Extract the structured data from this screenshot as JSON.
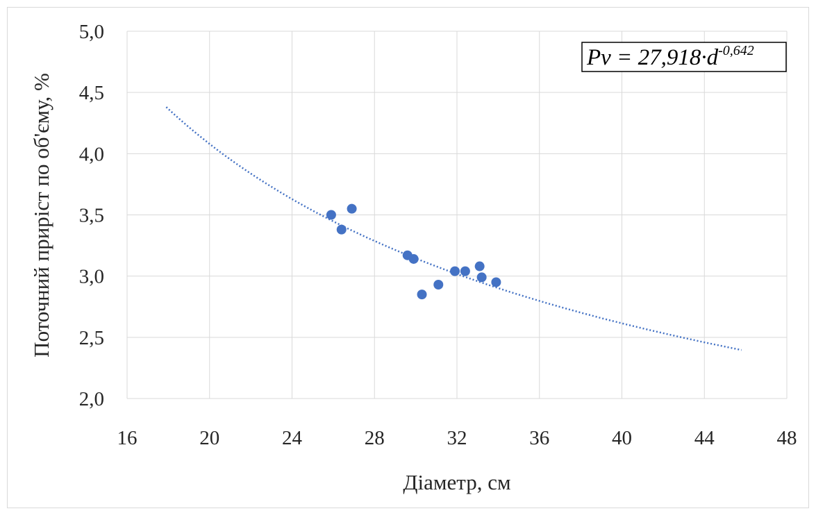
{
  "chart_data": {
    "type": "scatter",
    "xlabel": "Діаметр, см",
    "ylabel": "Поточний приріст по об'єму, %",
    "xlim": [
      16,
      48
    ],
    "ylim": [
      2.0,
      5.0
    ],
    "x_ticks": [
      "16",
      "20",
      "24",
      "28",
      "32",
      "36",
      "40",
      "44",
      "48"
    ],
    "y_ticks": [
      "2,0",
      "2,5",
      "3,0",
      "3,5",
      "4,0",
      "4,5",
      "5,0"
    ],
    "grid": true,
    "legend": "none",
    "points": {
      "x": [
        25.9,
        26.4,
        26.9,
        29.6,
        29.9,
        30.3,
        31.1,
        31.9,
        32.4,
        33.1,
        33.2,
        33.9
      ],
      "y": [
        3.5,
        3.38,
        3.55,
        3.17,
        3.14,
        2.85,
        2.93,
        3.04,
        3.04,
        3.08,
        2.99,
        2.95
      ]
    },
    "trendline": {
      "type": "power",
      "coefficient": 27.918,
      "exponent": -0.642,
      "x_range": [
        17.9,
        45.8
      ],
      "equation": {
        "lhs": "Pv = 27,918·d",
        "exponent_text": "-0,642"
      }
    },
    "colors": {
      "points": "#4472c4",
      "trendline": "#4472c4",
      "grid": "#d9d9d9"
    }
  }
}
